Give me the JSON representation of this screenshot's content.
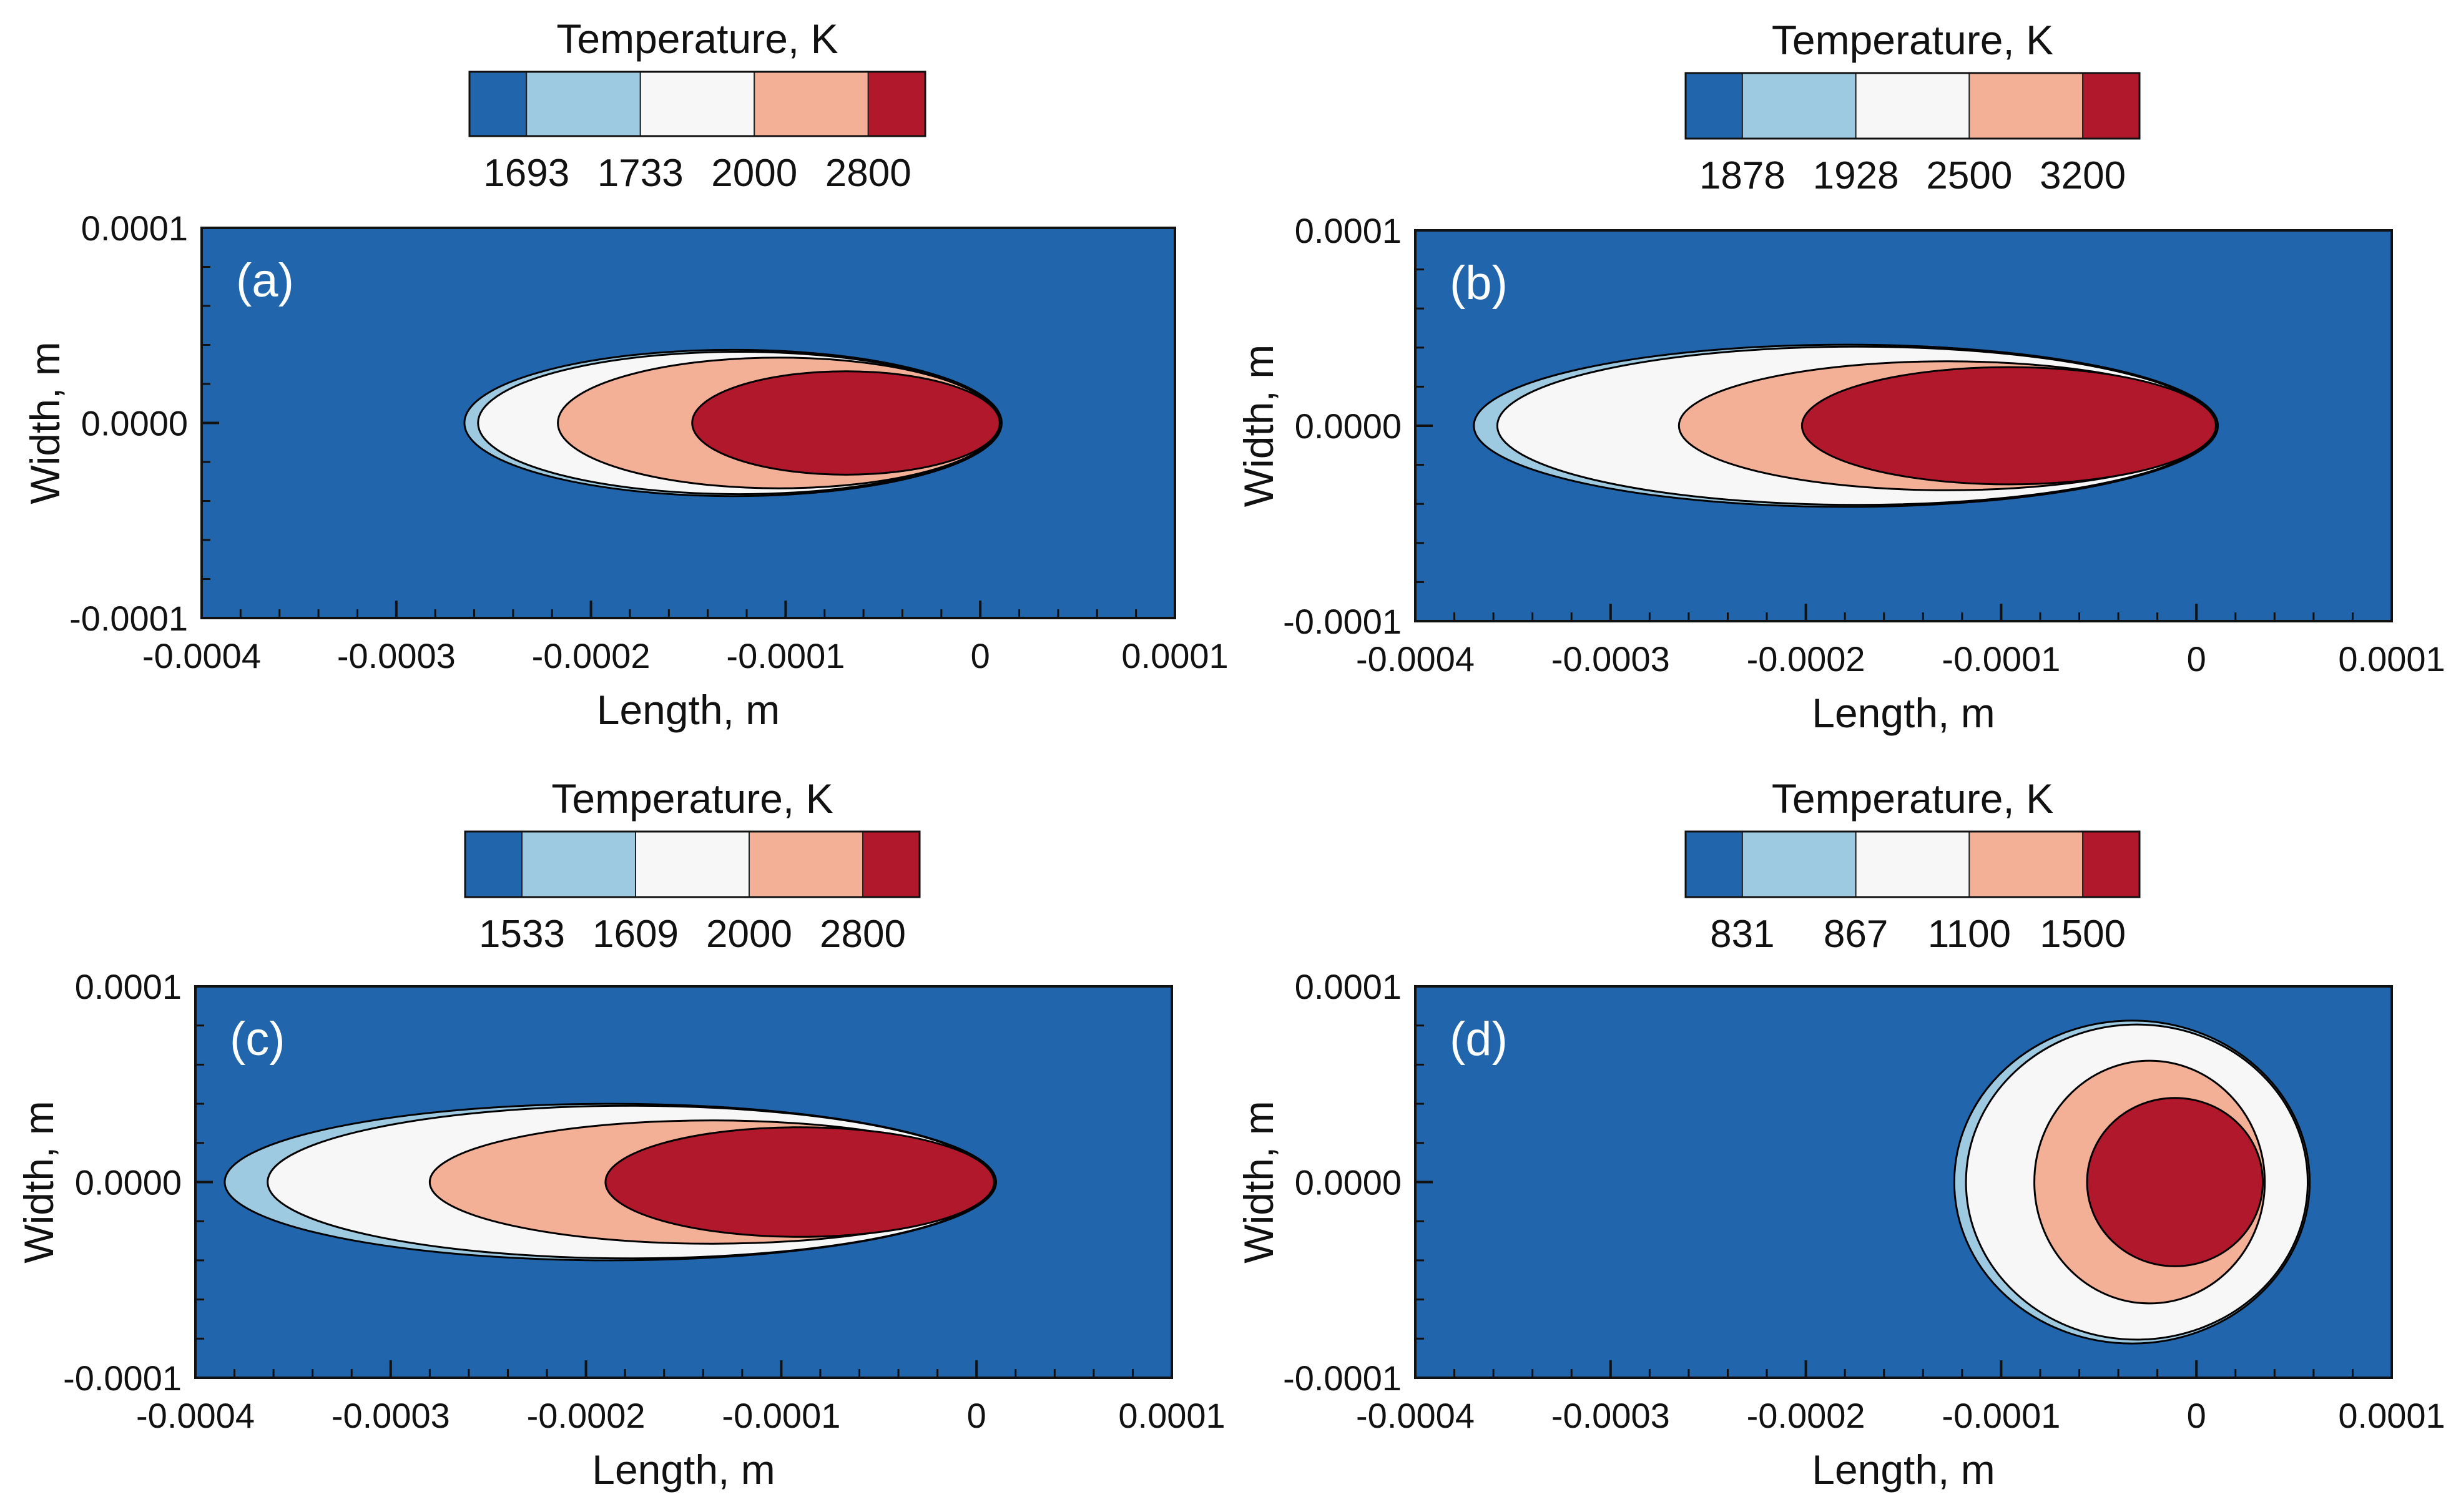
{
  "colors": {
    "level0": "#2166ac",
    "level1": "#9ecae1",
    "level2": "#f7f7f7",
    "level3": "#f4b096",
    "level4": "#b2182b",
    "background": "#2166ac",
    "outline": "#000000",
    "panel_label": "#ffffff"
  },
  "chart_data": [
    {
      "type": "contour",
      "panel": "(a)",
      "title": "Temperature, K",
      "colorbar_ticks": [
        "1693",
        "1733",
        "2000",
        "2800"
      ],
      "xlabel": "Length, m",
      "ylabel": "Width, m",
      "xlim": [
        -0.0004,
        0.0001
      ],
      "ylim": [
        -0.0001,
        0.0001
      ],
      "xticks": [
        "-0.0004",
        "-0.0003",
        "-0.0002",
        "-0.0001",
        "0",
        "0.0001"
      ],
      "yticks": [
        "0.0001",
        "0.0000",
        "-0.0001"
      ],
      "isotherms": [
        {
          "T": 1693,
          "x_min": -0.000265,
          "x_max": 1.1e-05,
          "half_width": 3.75e-05
        },
        {
          "T": 1733,
          "x_min": -0.000258,
          "x_max": 1e-05,
          "half_width": 3.65e-05
        },
        {
          "T": 2000,
          "x_min": -0.000217,
          "x_max": 1e-05,
          "half_width": 3.35e-05
        },
        {
          "T": 2800,
          "x_min": -0.000148,
          "x_max": 1e-05,
          "half_width": 2.65e-05
        }
      ]
    },
    {
      "type": "contour",
      "panel": "(b)",
      "title": "Temperature, K",
      "colorbar_ticks": [
        "1878",
        "1928",
        "2500",
        "3200"
      ],
      "xlabel": "Length, m",
      "ylabel": "Width, m",
      "xlim": [
        -0.0004,
        0.0001
      ],
      "ylim": [
        -0.0001,
        0.0001
      ],
      "xticks": [
        "-0.0004",
        "-0.0003",
        "-0.0002",
        "-0.0001",
        "0",
        "0.0001"
      ],
      "yticks": [
        "0.0001",
        "0.0000",
        "-0.0001"
      ],
      "isotherms": [
        {
          "T": 1878,
          "x_min": -0.00037,
          "x_max": 1.1e-05,
          "half_width": 4.15e-05
        },
        {
          "T": 1928,
          "x_min": -0.000358,
          "x_max": 1e-05,
          "half_width": 4.05e-05
        },
        {
          "T": 2500,
          "x_min": -0.000265,
          "x_max": 1e-05,
          "half_width": 3.3e-05
        },
        {
          "T": 3200,
          "x_min": -0.000202,
          "x_max": 1e-05,
          "half_width": 3e-05
        }
      ]
    },
    {
      "type": "contour",
      "panel": "(c)",
      "title": "Temperature, K",
      "colorbar_ticks": [
        "1533",
        "1609",
        "2000",
        "2800"
      ],
      "xlabel": "Length, m",
      "ylabel": "Width, m",
      "xlim": [
        -0.0004,
        0.0001
      ],
      "ylim": [
        -0.0001,
        0.0001
      ],
      "xticks": [
        "-0.0004",
        "-0.0003",
        "-0.0002",
        "-0.0001",
        "0",
        "0.0001"
      ],
      "yticks": [
        "0.0001",
        "0.0000",
        "-0.0001"
      ],
      "isotherms": [
        {
          "T": 1533,
          "x_min": -0.000385,
          "x_max": 1e-05,
          "half_width": 4e-05
        },
        {
          "T": 1609,
          "x_min": -0.000363,
          "x_max": 9e-06,
          "half_width": 3.9e-05
        },
        {
          "T": 2000,
          "x_min": -0.00028,
          "x_max": 9e-06,
          "half_width": 3.15e-05
        },
        {
          "T": 2800,
          "x_min": -0.00019,
          "x_max": 9e-06,
          "half_width": 2.8e-05
        }
      ]
    },
    {
      "type": "contour",
      "panel": "(d)",
      "title": "Temperature, K",
      "colorbar_ticks": [
        "831",
        "867",
        "1100",
        "1500"
      ],
      "xlabel": "Length, m",
      "ylabel": "Width, m",
      "xlim": [
        -0.0004,
        0.0001
      ],
      "ylim": [
        -0.0001,
        0.0001
      ],
      "xticks": [
        "-0.0004",
        "-0.0003",
        "-0.0002",
        "-0.0001",
        "0",
        "0.0001"
      ],
      "yticks": [
        "0.0001",
        "0.0000",
        "-0.0001"
      ],
      "isotherms": [
        {
          "T": 831,
          "x_min": -0.000124,
          "x_max": 5.8e-05,
          "half_width": 8.25e-05
        },
        {
          "T": 867,
          "x_min": -0.000118,
          "x_max": 5.7e-05,
          "half_width": 8.05e-05
        },
        {
          "T": 1100,
          "x_min": -8.3e-05,
          "x_max": 3.5e-05,
          "half_width": 6.2e-05
        },
        {
          "T": 1500,
          "x_min": -5.6e-05,
          "x_max": 3.4e-05,
          "half_width": 4.3e-05
        }
      ]
    }
  ]
}
